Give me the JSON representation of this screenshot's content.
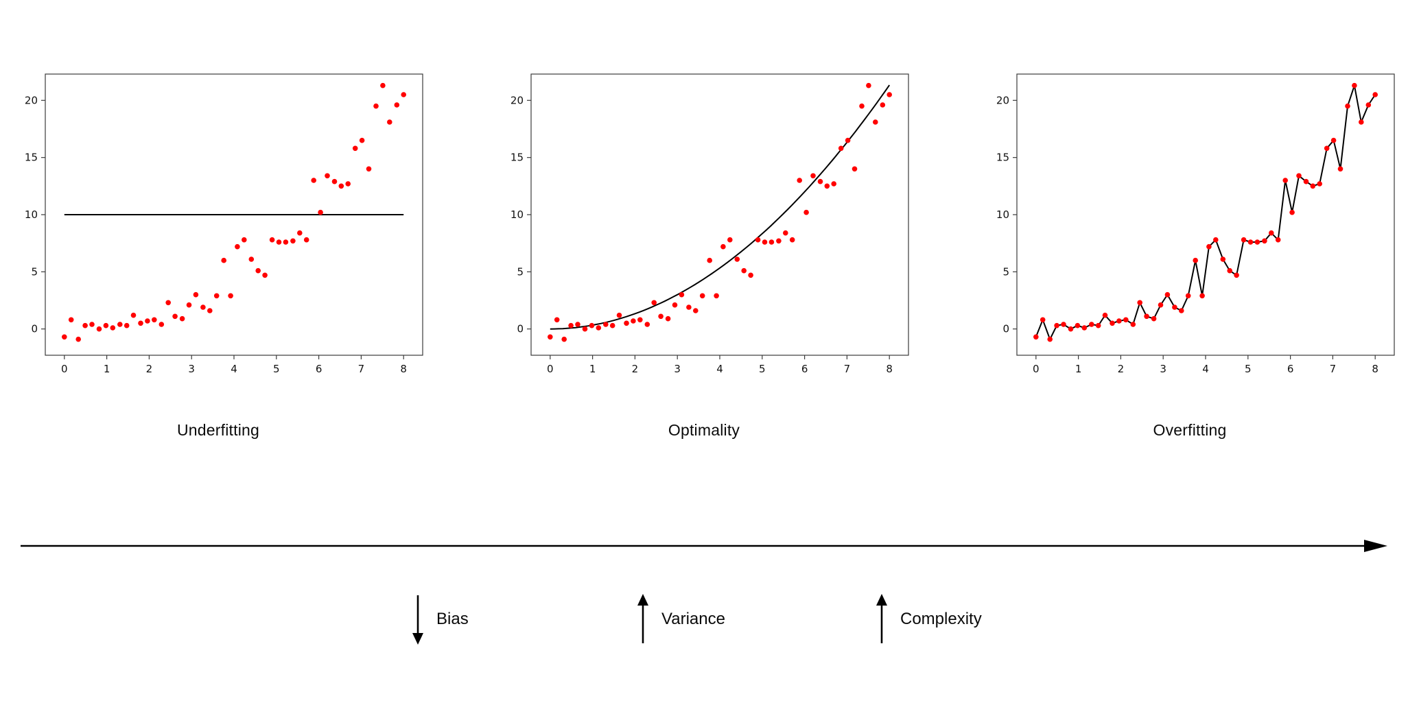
{
  "page": {
    "background": "#ffffff"
  },
  "chart_data": {
    "type": "scatter",
    "title": "",
    "xlabel": "",
    "ylabel": "",
    "grid": false,
    "legend": false,
    "xlim": [
      -0.45,
      8.45
    ],
    "ylim": [
      -2.3,
      22.3
    ],
    "xticks": [
      0,
      1,
      2,
      3,
      4,
      5,
      6,
      7,
      8
    ],
    "yticks": [
      0,
      5,
      10,
      15,
      20
    ],
    "point_color": "#ff0000",
    "line_color": "#000000",
    "points": {
      "x": [
        0.0,
        0.16,
        0.33,
        0.49,
        0.65,
        0.82,
        0.98,
        1.14,
        1.31,
        1.47,
        1.63,
        1.8,
        1.96,
        2.12,
        2.29,
        2.45,
        2.61,
        2.78,
        2.94,
        3.1,
        3.27,
        3.43,
        3.59,
        3.76,
        3.92,
        4.08,
        4.24,
        4.41,
        4.57,
        4.73,
        4.9,
        5.06,
        5.22,
        5.39,
        5.55,
        5.71,
        5.88,
        6.04,
        6.2,
        6.37,
        6.53,
        6.69,
        6.86,
        7.02,
        7.18,
        7.35,
        7.51,
        7.67,
        7.84,
        8.0
      ],
      "y": [
        -0.7,
        0.8,
        -0.9,
        0.3,
        0.4,
        0.0,
        0.3,
        0.1,
        0.4,
        0.3,
        1.2,
        0.5,
        0.7,
        0.8,
        0.4,
        2.3,
        1.1,
        0.9,
        2.1,
        3.0,
        1.9,
        1.6,
        2.9,
        6.0,
        2.9,
        7.2,
        7.8,
        6.1,
        5.1,
        4.7,
        7.8,
        7.6,
        7.6,
        7.7,
        8.4,
        7.8,
        13.0,
        10.2,
        13.4,
        12.9,
        12.5,
        12.7,
        15.8,
        16.5,
        14.0,
        19.5,
        21.3,
        18.1,
        19.6,
        20.5
      ]
    },
    "subplots": [
      {
        "title": "Underfitting",
        "fit": {
          "type": "constant",
          "value": 10,
          "x_range": [
            0,
            8
          ]
        }
      },
      {
        "title": "Optimality",
        "fit": {
          "type": "quadratic",
          "coefficient": 0.3333,
          "formula": "y = x^2/3",
          "x_range": [
            0,
            8
          ]
        }
      },
      {
        "title": "Overfitting",
        "fit": {
          "type": "point_interpolation"
        }
      }
    ]
  },
  "axis_annotation": {
    "direction": "right",
    "items": [
      {
        "label": "Bias",
        "arrow": "down"
      },
      {
        "label": "Variance",
        "arrow": "up"
      },
      {
        "label": "Complexity",
        "arrow": "up"
      }
    ]
  }
}
